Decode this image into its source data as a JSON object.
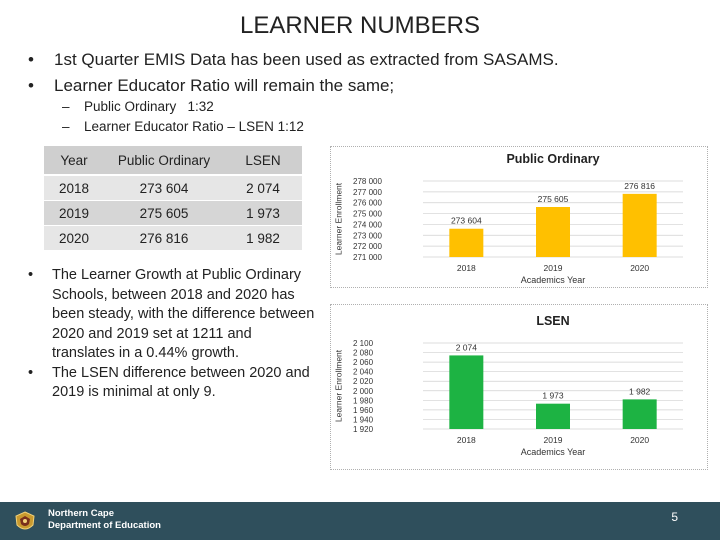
{
  "slide": {
    "title": "LEARNER NUMBERS",
    "bullets": [
      "1st Quarter EMIS Data has been used as extracted from SASAMS.",
      "Learner Educator Ratio will remain the same;"
    ],
    "sub_bullets": [
      "Public Ordinary   1:32",
      "Learner Educator Ratio – LSEN 1:12"
    ],
    "paragraph_bullets": [
      "The Learner Growth at Public Ordinary Schools, between 2018 and 2020 has been steady, with the difference between 2020 and 2019 set at 1211 and translates in a 0.44% growth.",
      "The LSEN difference between 2020 and 2019 is minimal at only 9."
    ],
    "page_number": "5"
  },
  "table": {
    "headers": [
      "Year",
      "Public Ordinary",
      "LSEN"
    ],
    "rows": [
      [
        "2018",
        "273 604",
        "2 074"
      ],
      [
        "2019",
        "275 605",
        "1 973"
      ],
      [
        "2020",
        "276 816",
        "1 982"
      ]
    ]
  },
  "footer": {
    "org_line1": "Northern Cape",
    "org_line2": "Department of Education",
    "logo_icon": "coat-of-arms-icon",
    "background": "#2f4f5c"
  },
  "chart_data": [
    {
      "type": "bar",
      "title": "Public Ordinary",
      "xlabel": "Academics Year",
      "ylabel": "Learner Enrollment",
      "categories": [
        "2018",
        "2019",
        "2020"
      ],
      "values": [
        273604,
        275605,
        276816
      ],
      "data_labels": [
        "273 604",
        "275 605",
        "276 816"
      ],
      "yticks": [
        "278 000",
        "277 000",
        "276 000",
        "275 000",
        "274 000",
        "273 000",
        "272 000",
        "271 000"
      ],
      "ylim": [
        271000,
        278000
      ],
      "grid": true,
      "color": "#FFC000"
    },
    {
      "type": "bar",
      "title": "LSEN",
      "xlabel": "Academics Year",
      "ylabel": "Learner Enrollment",
      "categories": [
        "2018",
        "2019",
        "2020"
      ],
      "values": [
        2074,
        1973,
        1982
      ],
      "data_labels": [
        "2 074",
        "1 973",
        "1 982"
      ],
      "yticks": [
        "2 100",
        "2 080",
        "2 060",
        "2 040",
        "2 020",
        "2 000",
        "1 980",
        "1 960",
        "1 940",
        "1 920"
      ],
      "ylim": [
        1920,
        2100
      ],
      "grid": true,
      "color": "#1DB343"
    }
  ]
}
